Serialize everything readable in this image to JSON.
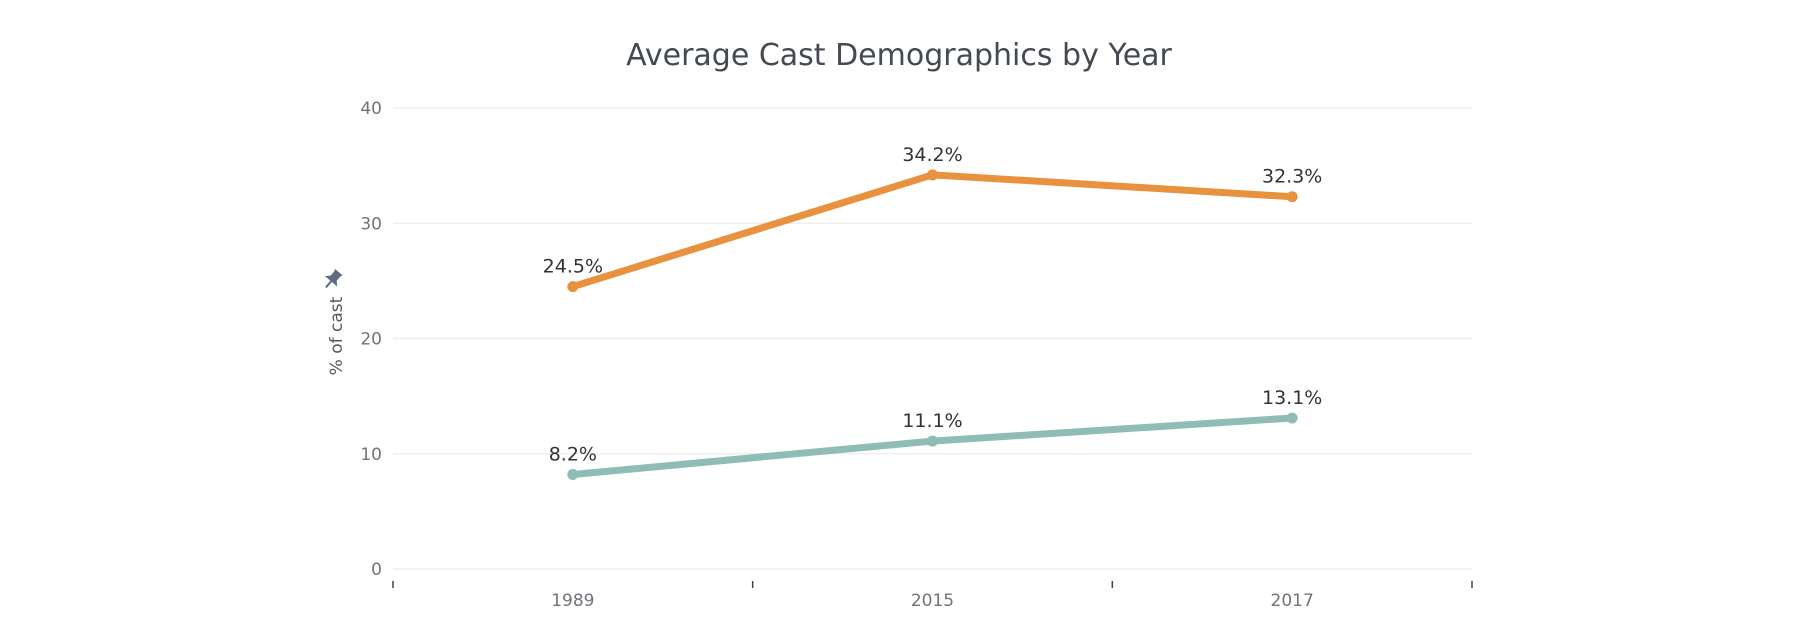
{
  "chart_data": {
    "type": "line",
    "title": "Average Cast Demographics by Year",
    "xlabel": "",
    "ylabel": "% of cast",
    "categories": [
      "1989",
      "2015",
      "2017"
    ],
    "ylim": [
      0,
      40
    ],
    "yticks": [
      0,
      10,
      20,
      30,
      40
    ],
    "grid": true,
    "series": [
      {
        "values": [
          24.5,
          34.2,
          32.3
        ],
        "labels": [
          "24.5%",
          "34.2%",
          "32.3%"
        ],
        "color": "#E8913F"
      },
      {
        "values": [
          8.2,
          11.1,
          13.1
        ],
        "labels": [
          "8.2%",
          "11.1%",
          "13.1%"
        ],
        "color": "#8FBDB5"
      }
    ]
  },
  "icons": {
    "axis_pin": "pin-icon"
  }
}
